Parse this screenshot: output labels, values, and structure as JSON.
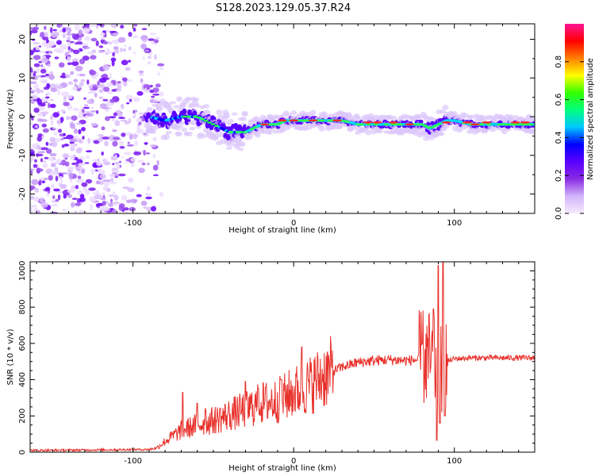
{
  "figure": {
    "title": "S128.2023.129.05.37.R24"
  },
  "chart_data": [
    {
      "type": "heatmap",
      "xlabel": "Height of straight line (km)",
      "ylabel": "Frequency (Hz)",
      "xlim": [
        -164,
        150
      ],
      "ylim": [
        -25,
        24
      ],
      "xticks": [
        -100,
        0,
        100
      ],
      "yticks": [
        -20,
        -10,
        0,
        10,
        20
      ],
      "colorbar": {
        "label": "Normalized spectral amplitude",
        "range": [
          0,
          1
        ],
        "ticks": [
          0.0,
          0.2,
          0.4,
          0.6,
          0.8
        ],
        "colors": [
          "#f4ecff",
          "#d2b4fa",
          "#8a2be2",
          "#5a00ff",
          "#0000ff",
          "#00c8ff",
          "#00ff80",
          "#33ff00",
          "#ffff00",
          "#ff8000",
          "#ff0000",
          "#ff1493"
        ]
      },
      "ridge": {
        "x": [
          -90,
          -80,
          -70,
          -60,
          -50,
          -40,
          -30,
          -20,
          -10,
          -5,
          0,
          5,
          10,
          20,
          30,
          40,
          50,
          60,
          70,
          80,
          85,
          90,
          95,
          100,
          110,
          120,
          130,
          140,
          150
        ],
        "freq": [
          0,
          -1,
          0,
          0,
          -2,
          -4,
          -4,
          -2,
          -2,
          -1,
          -1,
          -1,
          -1,
          -1,
          -1,
          -2,
          -2,
          -2,
          -2,
          -2,
          -3,
          -2,
          -1,
          -1,
          -2,
          -2,
          -2,
          -2,
          -2
        ]
      },
      "noise_region": {
        "x_start": -164,
        "x_end": -90,
        "freq_range": [
          -25,
          24
        ]
      }
    },
    {
      "type": "line",
      "xlabel": "Height of straight line (km)",
      "ylabel": "SNR (10 * v/v)",
      "xlim": [
        -164,
        150
      ],
      "ylim": [
        0,
        1050
      ],
      "xticks": [
        -100,
        0,
        100
      ],
      "yticks": [
        0,
        200,
        400,
        600,
        800,
        1000
      ],
      "color": "#e8302a",
      "envelope": {
        "x": [
          -164,
          -90,
          -85,
          -80,
          -70,
          -60,
          -50,
          -40,
          -30,
          -20,
          -10,
          0,
          10,
          20,
          25,
          30,
          40,
          50,
          60,
          70,
          78,
          82,
          86,
          88,
          90,
          92,
          95,
          100,
          110,
          120,
          130,
          140,
          150
        ],
        "y": [
          10,
          15,
          25,
          60,
          120,
          150,
          175,
          205,
          235,
          270,
          285,
          330,
          370,
          430,
          450,
          470,
          495,
          505,
          510,
          505,
          510,
          520,
          500,
          480,
          430,
          460,
          500,
          515,
          520,
          520,
          520,
          520,
          520
        ]
      },
      "spikes": [
        {
          "x": -69,
          "y": 330
        },
        {
          "x": -60,
          "y": 270
        },
        {
          "x": -55,
          "y": 240
        },
        {
          "x": -46,
          "y": 240
        },
        {
          "x": -30,
          "y": 390
        },
        {
          "x": -22,
          "y": 350
        },
        {
          "x": -8,
          "y": 400
        },
        {
          "x": 5,
          "y": 580
        },
        {
          "x": 80,
          "y": 600
        },
        {
          "x": 87,
          "y": 790
        },
        {
          "x": 89,
          "y": 65
        },
        {
          "x": 90,
          "y": 1030
        },
        {
          "x": 91,
          "y": 160
        },
        {
          "x": 93,
          "y": 1060
        },
        {
          "x": 94,
          "y": 200
        }
      ]
    }
  ]
}
